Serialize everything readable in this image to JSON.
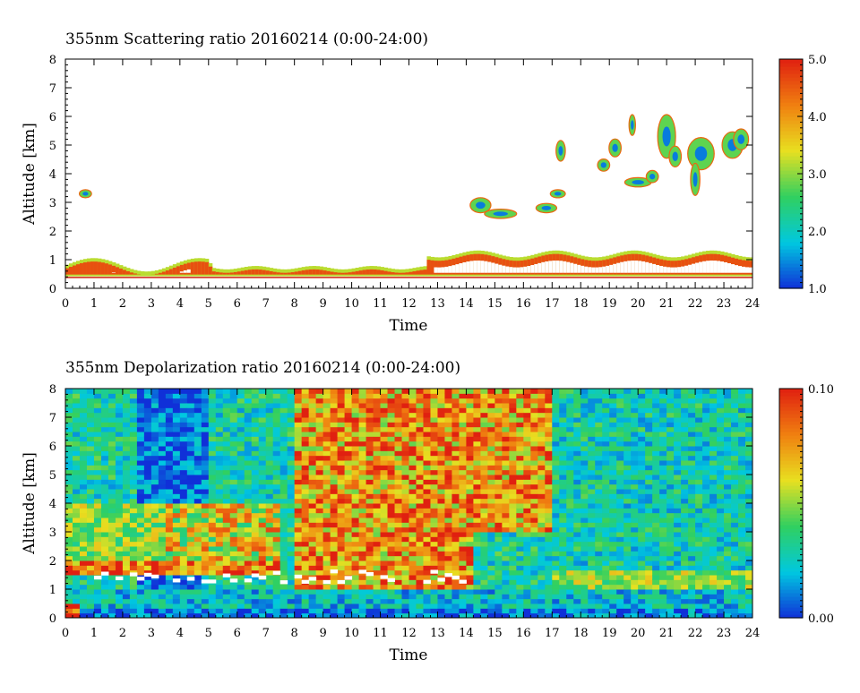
{
  "chart_data": [
    {
      "type": "heatmap",
      "title": "355nm Scattering ratio  20160214 (0:00-24:00)",
      "xlabel": "Time",
      "ylabel": "Altitude [km]",
      "xlim": [
        0,
        24
      ],
      "ylim": [
        0,
        8
      ],
      "x_ticks": [
        "0",
        "1",
        "2",
        "3",
        "4",
        "5",
        "6",
        "7",
        "8",
        "9",
        "10",
        "11",
        "12",
        "13",
        "14",
        "15",
        "16",
        "17",
        "18",
        "19",
        "20",
        "21",
        "22",
        "23",
        "24"
      ],
      "y_ticks": [
        "0",
        "1",
        "2",
        "3",
        "4",
        "5",
        "6",
        "7",
        "8"
      ],
      "colorbar": {
        "range": [
          1.0,
          5.0
        ],
        "tick_labels": [
          "1.0",
          "2.0",
          "3.0",
          "4.0",
          "5.0"
        ],
        "tick_values": [
          1.0,
          2.0,
          3.0,
          4.0,
          5.0
        ]
      },
      "colormap": [
        "#1030d8",
        "#00c8e0",
        "#30d060",
        "#e8e020",
        "#f08010",
        "#e02010"
      ],
      "features": [
        {
          "t": [
            0.0,
            12.6
          ],
          "base_km": 0.35,
          "top_km": 0.9,
          "label": "boundary layer"
        },
        {
          "t": [
            12.6,
            24.0
          ],
          "base_km": 0.35,
          "top_km": 1.3,
          "label": "boundary layer"
        },
        {
          "t": [
            14.0,
            17.0
          ],
          "base_km": 2.5,
          "top_km": 3.0,
          "label": "aerosol layer"
        },
        {
          "t": [
            17.0,
            24.0
          ],
          "base_km": 3.5,
          "top_km": 6.0,
          "label": "clouds"
        }
      ]
    },
    {
      "type": "heatmap",
      "title": "355nm Depolarization ratio  20160214 (0:00-24:00)",
      "xlabel": "Time",
      "ylabel": "Altitude [km]",
      "xlim": [
        0,
        24
      ],
      "ylim": [
        0,
        8
      ],
      "x_ticks": [
        "0",
        "1",
        "2",
        "3",
        "4",
        "5",
        "6",
        "7",
        "8",
        "9",
        "10",
        "11",
        "12",
        "13",
        "14",
        "15",
        "16",
        "17",
        "18",
        "19",
        "20",
        "21",
        "22",
        "23",
        "24"
      ],
      "y_ticks": [
        "0",
        "1",
        "2",
        "3",
        "4",
        "5",
        "6",
        "7",
        "8"
      ],
      "colorbar": {
        "range": [
          0.0,
          0.1
        ],
        "tick_labels": [
          "0.00",
          "0.10"
        ],
        "tick_values": [
          0.0,
          0.1
        ]
      },
      "colormap": [
        "#1030d8",
        "#00c8e0",
        "#30d060",
        "#e8e020",
        "#f08010",
        "#e02010"
      ],
      "features": [
        {
          "t": [
            0.0,
            24.0
          ],
          "base_km": 0.0,
          "top_km": 1.0,
          "label": "low depolarization boundary layer"
        },
        {
          "t": [
            8.0,
            17.0
          ],
          "base_km": 1.5,
          "top_km": 8.0,
          "label": "noisy high depolarization region"
        },
        {
          "t": [
            0.5,
            7.5
          ],
          "base_km": 1.5,
          "top_km": 4.0,
          "label": "elevated dust layer"
        }
      ]
    }
  ]
}
